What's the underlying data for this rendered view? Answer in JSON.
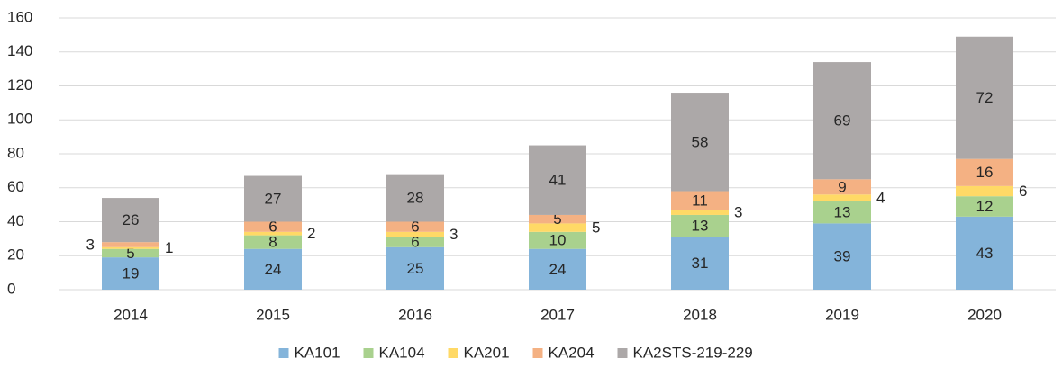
{
  "chart_data": {
    "type": "stacked_bar",
    "categories": [
      "2014",
      "2015",
      "2016",
      "2017",
      "2018",
      "2019",
      "2020"
    ],
    "series": [
      {
        "name": "KA101",
        "color": "#84b4da",
        "values": [
          19,
          24,
          25,
          24,
          31,
          39,
          43
        ]
      },
      {
        "name": "KA104",
        "color": "#a9d18e",
        "values": [
          5,
          8,
          6,
          10,
          13,
          13,
          12
        ]
      },
      {
        "name": "KA201",
        "color": "#ffd966",
        "values": [
          1,
          2,
          3,
          5,
          3,
          4,
          6
        ]
      },
      {
        "name": "KA204",
        "color": "#f4b183",
        "values": [
          3,
          6,
          6,
          5,
          11,
          9,
          16
        ]
      },
      {
        "name": "KA2STS-219-229",
        "color": "#aca8a8",
        "values": [
          26,
          27,
          28,
          41,
          58,
          69,
          72
        ]
      }
    ],
    "ylim": [
      0,
      160
    ],
    "yticks": [
      0,
      20,
      40,
      60,
      80,
      100,
      120,
      140,
      160
    ],
    "grid": true,
    "legend": "bottom"
  }
}
